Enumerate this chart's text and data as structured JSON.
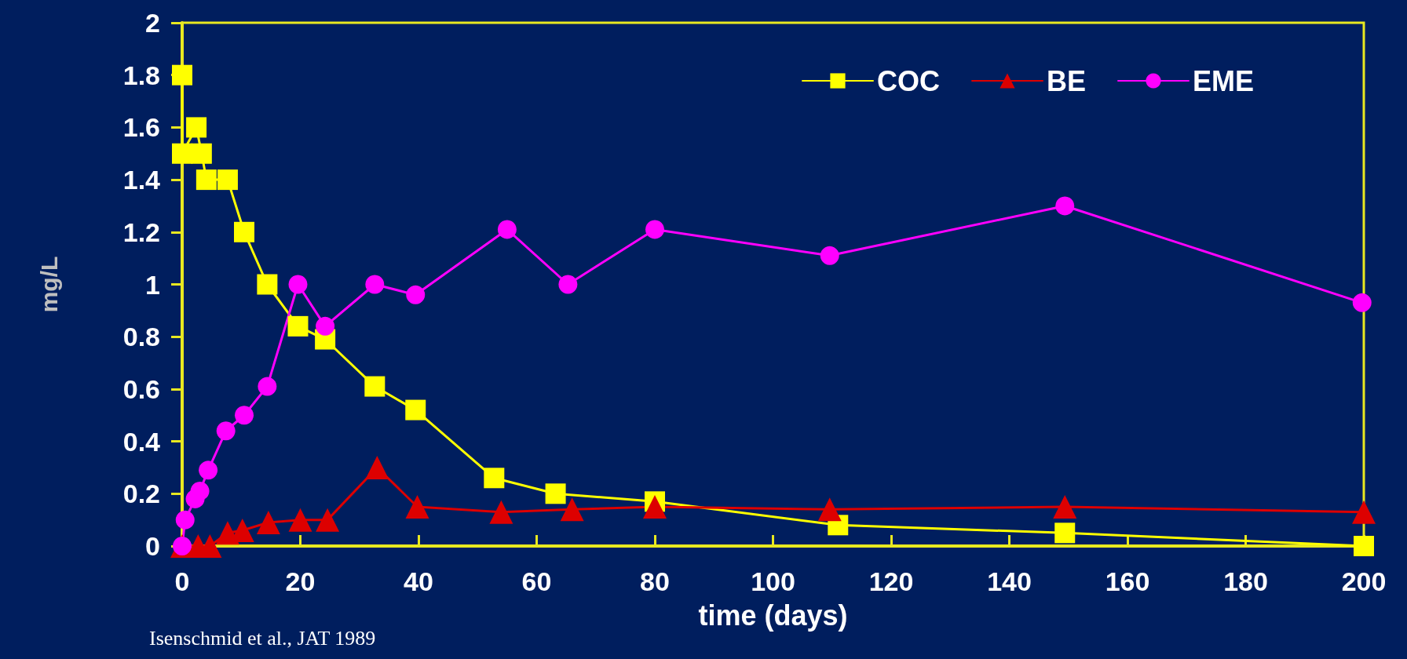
{
  "chart_data": {
    "type": "line",
    "xlabel": "time (days)",
    "ylabel": "mg/L",
    "xlim": [
      0,
      200
    ],
    "xticks": [
      0,
      20,
      40,
      60,
      80,
      100,
      120,
      140,
      160,
      180,
      200
    ],
    "ylim": [
      0,
      2
    ],
    "yticks": [
      0,
      0.2,
      0.4,
      0.6,
      0.8,
      1,
      1.2,
      1.4,
      1.6,
      1.8,
      2
    ],
    "grid": false,
    "legend": "top right",
    "line_style": "solid",
    "annotations": [
      "Isenschmid et al., JAT 1989"
    ],
    "series": [
      {
        "name": "COC",
        "color": "#ffff00",
        "marker": "square",
        "x": [
          0,
          0,
          2.4,
          3.3,
          4.1,
          7.7,
          10.5,
          14.4,
          19.6,
          24.2,
          32.6,
          39.5,
          52.8,
          63.2,
          80,
          111,
          149.4,
          200
        ],
        "values": [
          1.8,
          1.5,
          1.6,
          1.5,
          1.4,
          1.4,
          1.2,
          1.0,
          0.84,
          0.79,
          0.61,
          0.52,
          0.26,
          0.2,
          0.17,
          0.08,
          0.05,
          0
        ]
      },
      {
        "name": "BE",
        "color": "#dd0000",
        "marker": "triangle",
        "x": [
          0,
          2.7,
          4.7,
          7.7,
          10.2,
          14.6,
          20,
          24.6,
          33,
          39.8,
          54,
          66,
          80,
          109.6,
          149.4,
          200
        ],
        "values": [
          0,
          0,
          0,
          0.05,
          0.06,
          0.09,
          0.1,
          0.1,
          0.3,
          0.15,
          0.13,
          0.14,
          0.15,
          0.14,
          0.15,
          0.13
        ]
      },
      {
        "name": "EME",
        "color": "#ff00ff",
        "marker": "circle",
        "x": [
          0,
          0.5,
          2.2,
          3,
          4.4,
          7.4,
          10.5,
          14.4,
          19.6,
          24.2,
          32.6,
          39.5,
          55,
          65.3,
          80,
          109.6,
          149.4,
          199.7
        ],
        "values": [
          0,
          0.1,
          0.18,
          0.21,
          0.29,
          0.44,
          0.5,
          0.61,
          1.0,
          0.84,
          1.0,
          0.96,
          1.21,
          1.0,
          1.21,
          1.11,
          1.3,
          0.93
        ]
      }
    ]
  }
}
